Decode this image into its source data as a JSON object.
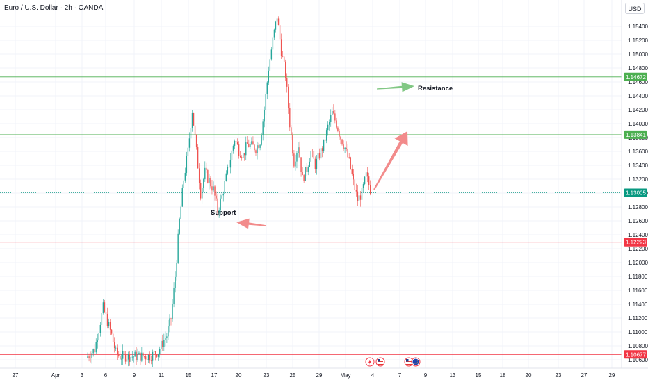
{
  "header": {
    "title": "Euro / U.S. Dollar · 2h · OANDA",
    "currency_button": "USD"
  },
  "colors": {
    "up": "#26a69a",
    "down": "#ef5350",
    "resistance_line": "#4caf50",
    "support_line": "#f23645",
    "current_price": "#089981",
    "arrow_green": "#81c784",
    "arrow_red": "#f28b8b"
  },
  "chart_data": {
    "type": "candlestick",
    "instrument": "Euro / U.S. Dollar",
    "timeframe": "2h",
    "source": "OANDA",
    "y_ticks": [
      "1.15400",
      "1.15200",
      "1.15000",
      "1.14800",
      "1.14600",
      "1.14400",
      "1.14200",
      "1.14000",
      "1.13800",
      "1.13600",
      "1.13400",
      "1.13200",
      "1.13000",
      "1.12800",
      "1.12600",
      "1.12400",
      "1.12200",
      "1.12000",
      "1.11800",
      "1.11600",
      "1.11400",
      "1.11200",
      "1.11000",
      "1.10800",
      "1.10600"
    ],
    "ylim": [
      1.1058,
      1.1562
    ],
    "x_ticks": [
      "27",
      "Apr",
      "3",
      "6",
      "9",
      "11",
      "15",
      "17",
      "20",
      "23",
      "25",
      "29",
      "May",
      "4",
      "7",
      "9",
      "13",
      "15",
      "18",
      "20",
      "23",
      "27",
      "29"
    ],
    "horizontal_levels": [
      {
        "price": 1.14672,
        "label": "1.14672",
        "color": "#4caf50"
      },
      {
        "price": 1.13841,
        "label": "1.13841",
        "color": "#4caf50"
      },
      {
        "price": 1.13005,
        "label": "1.13005",
        "color": "#089981",
        "style": "dotted"
      },
      {
        "price": 1.12293,
        "label": "1.12293",
        "color": "#f23645"
      },
      {
        "price": 1.10677,
        "label": "1.10677",
        "color": "#f23645"
      }
    ],
    "annotations": [
      "Resistance",
      "Support"
    ],
    "close_path": [
      [
        0,
        1.1063
      ],
      [
        2,
        1.1075
      ],
      [
        4,
        1.1135
      ],
      [
        6,
        1.1095
      ],
      [
        7,
        1.107
      ],
      [
        8,
        1.1065
      ],
      [
        15,
        1.1065
      ],
      [
        17,
        1.1072
      ],
      [
        18,
        1.1085
      ],
      [
        19,
        1.1095
      ],
      [
        20,
        1.112
      ],
      [
        21,
        1.118
      ],
      [
        22,
        1.126
      ],
      [
        23,
        1.132
      ],
      [
        24,
        1.136
      ],
      [
        25,
        1.142
      ],
      [
        26,
        1.136
      ],
      [
        27,
        1.13
      ],
      [
        28,
        1.133
      ],
      [
        30,
        1.1305
      ],
      [
        31,
        1.1275
      ],
      [
        32,
        1.1295
      ],
      [
        34,
        1.135
      ],
      [
        35,
        1.1378
      ],
      [
        36,
        1.1362
      ],
      [
        37,
        1.1355
      ],
      [
        38,
        1.137
      ],
      [
        40,
        1.1365
      ],
      [
        41,
        1.1375
      ],
      [
        42,
        1.142
      ],
      [
        43,
        1.148
      ],
      [
        44,
        1.152
      ],
      [
        45,
        1.1555
      ],
      [
        46,
        1.1505
      ],
      [
        47,
        1.147
      ],
      [
        48,
        1.14
      ],
      [
        49,
        1.1345
      ],
      [
        50,
        1.137
      ],
      [
        51,
        1.132
      ],
      [
        52,
        1.1335
      ],
      [
        53,
        1.136
      ],
      [
        54,
        1.134
      ],
      [
        55,
        1.1355
      ],
      [
        56,
        1.137
      ],
      [
        57,
        1.1395
      ],
      [
        58,
        1.1415
      ],
      [
        59,
        1.14
      ],
      [
        60,
        1.138
      ],
      [
        61,
        1.1365
      ],
      [
        62,
        1.1345
      ],
      [
        63,
        1.1315
      ],
      [
        64,
        1.129
      ],
      [
        65,
        1.13
      ],
      [
        66,
        1.1325
      ],
      [
        67,
        1.1305
      ]
    ]
  },
  "events": [
    {
      "icon": "lightning-icon"
    },
    {
      "icon": "us-flag-icon"
    },
    {
      "icon": "us-flag-icon"
    },
    {
      "icon": "eu-flag-icon"
    }
  ]
}
